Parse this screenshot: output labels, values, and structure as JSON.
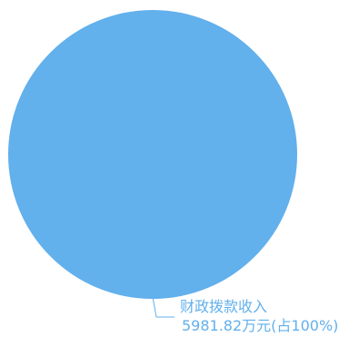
{
  "chart_data": {
    "type": "pie",
    "slices": [
      {
        "name": "财政拨款收入",
        "value": 5981.82,
        "value_label": "5981.82万元(占100%)",
        "percent": 100,
        "color": "#62b0ec"
      }
    ],
    "label_color": "#62b0ec",
    "leader_line_color": "#62b0ec"
  }
}
